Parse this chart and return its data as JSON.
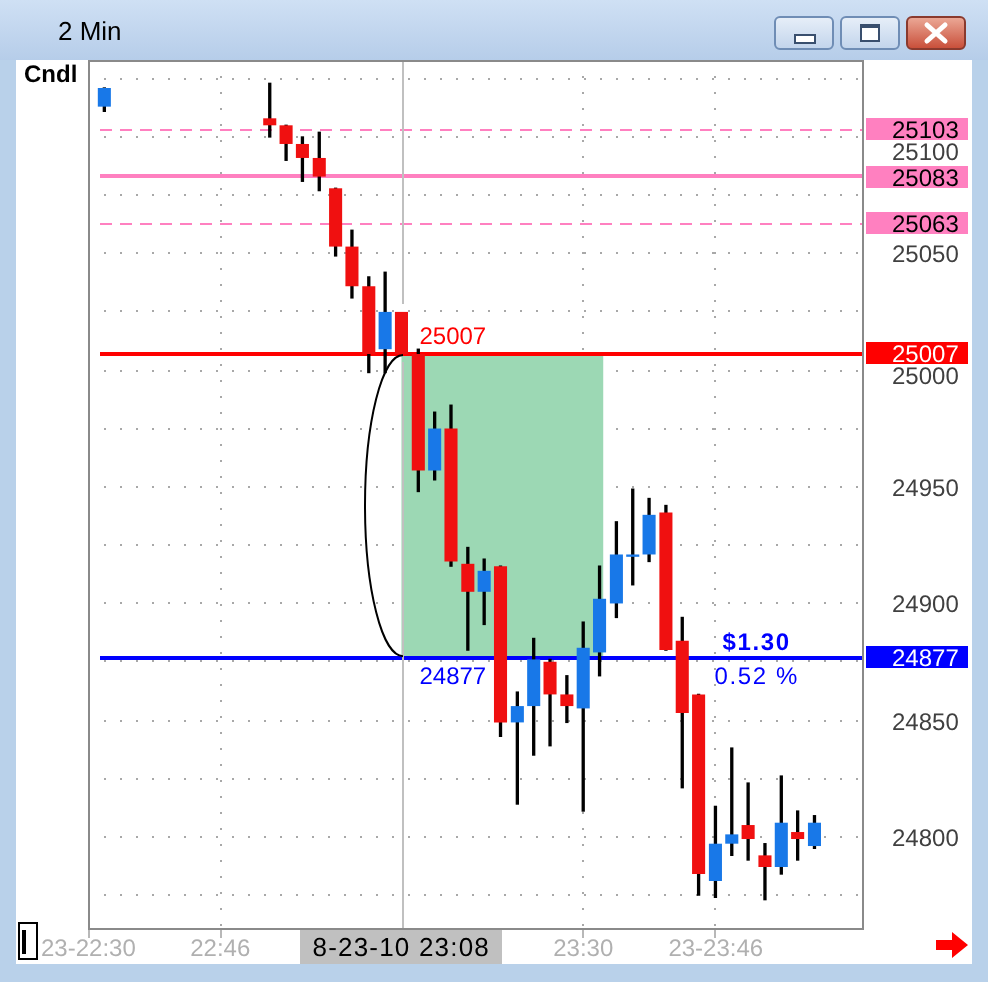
{
  "chart_data": {
    "type": "candlestick",
    "title": "2 Min",
    "x": [
      22.533,
      22.867,
      22.9,
      22.933,
      22.967,
      23,
      23.033,
      23.067,
      23.1,
      23.133,
      23.167,
      23.2,
      23.233,
      23.267,
      23.3,
      23.333,
      23.367,
      23.4,
      23.433,
      23.467,
      23.5,
      23.533,
      23.567,
      23.6,
      23.633,
      23.667,
      23.7,
      23.733,
      23.767,
      23.8,
      23.833,
      23.867,
      23.9,
      23.933,
      23.967
    ],
    "ohlc": [
      [
        25113,
        25121,
        25111,
        25121
      ],
      [
        25108,
        25123,
        25100,
        25105
      ],
      [
        25105,
        25105,
        25090,
        25097
      ],
      [
        25097,
        25100,
        25081,
        25091
      ],
      [
        25091,
        25102,
        25077,
        25083
      ],
      [
        25078,
        25078,
        25049,
        25053
      ],
      [
        25053,
        25060,
        25031,
        25036
      ],
      [
        25036,
        25040,
        24999,
        25007
      ],
      [
        25009,
        25042,
        24999,
        25025
      ],
      [
        25025,
        25025,
        25007,
        25007
      ],
      [
        25007,
        25009,
        24948,
        24957
      ],
      [
        24957,
        24982,
        24953,
        24975
      ],
      [
        24975,
        24985,
        24916,
        24918
      ],
      [
        24917,
        24924,
        24880,
        24905
      ],
      [
        24905,
        24919,
        24891,
        24914
      ],
      [
        24916,
        24916,
        24843,
        24849
      ],
      [
        24849,
        24862,
        24814,
        24856
      ],
      [
        24856,
        24885,
        24835,
        24876
      ],
      [
        24875,
        24876,
        24839,
        24861
      ],
      [
        24861,
        24869,
        24849,
        24856
      ],
      [
        24855,
        24892,
        24811,
        24881
      ],
      [
        24879,
        24916,
        24869,
        24902
      ],
      [
        24900,
        24935,
        24894,
        24921
      ],
      [
        24920,
        24949,
        24908,
        24921
      ],
      [
        24921,
        24945,
        24918,
        24938
      ],
      [
        24939,
        24942,
        24880,
        24880
      ],
      [
        24884,
        24894,
        24821,
        24853
      ],
      [
        24861,
        24861,
        24775,
        24784
      ],
      [
        24781,
        24813,
        24774,
        24797
      ],
      [
        24797,
        24838,
        24792,
        24801
      ],
      [
        24805,
        24823,
        24790,
        24799
      ],
      [
        24792,
        24797,
        24773,
        24787
      ],
      [
        24787,
        24826,
        24784,
        24806
      ],
      [
        24802,
        24811,
        24790,
        24799
      ],
      [
        24796,
        24809,
        24795,
        24806
      ]
    ],
    "colors": [
      "#1878e8",
      "#f01010",
      "#f01010",
      "#f01010",
      "#f01010",
      "#f01010",
      "#f01010",
      "#f01010",
      "#1878e8",
      "#f01010",
      "#f01010",
      "#1878e8",
      "#f01010",
      "#f01010",
      "#1878e8",
      "#f01010",
      "#1878e8",
      "#1878e8",
      "#f01010",
      "#f01010",
      "#1878e8",
      "#1878e8",
      "#1878e8",
      "#1878e8",
      "#1878e8",
      "#f01010",
      "#f01010",
      "#f01010",
      "#1878e8",
      "#1878e8",
      "#f01010",
      "#f01010",
      "#1878e8",
      "#f01010",
      "#1878e8"
    ],
    "xlim": [
      22.5,
      24.067
    ],
    "xticks": [
      {
        "value": 22.5,
        "label": "23-22:30"
      },
      {
        "value": 22.767,
        "label": "22:46"
      },
      {
        "value": 23.5,
        "label": "23:30"
      },
      {
        "value": 23.767,
        "label": "23-23:46"
      }
    ],
    "ylim": [
      24760,
      25133
    ],
    "yticks": [
      {
        "value": 24775,
        "label": null
      },
      24800,
      {
        "value": 24825,
        "label": null
      },
      24850,
      {
        "value": 24875,
        "label": null
      },
      24900,
      {
        "value": 24925,
        "label": null
      },
      24950,
      {
        "value": 24975,
        "label": null
      },
      25000,
      {
        "value": 25025,
        "label": null
      },
      25050,
      {
        "value": 25075,
        "label": null
      },
      25100,
      {
        "value": 25125,
        "label": null
      }
    ],
    "grid": true,
    "ref_lines": [
      {
        "axis": "y",
        "value": 25103,
        "label": "25103",
        "color": "#ff80c0",
        "line_style": "dashed"
      },
      {
        "axis": "y",
        "value": 25083,
        "label": "25083",
        "color": "#ff80c0",
        "line_style": "solid"
      },
      {
        "axis": "y",
        "value": 25063,
        "label": "25063",
        "color": "#ff80c0",
        "line_style": "dashed"
      },
      {
        "axis": "y",
        "value": 25007,
        "label": "25007",
        "color": "#ff0000",
        "line_style": "solid"
      },
      {
        "axis": "y",
        "value": 24877,
        "label": "24877",
        "color": "#0000ff",
        "line_style": "solid"
      },
      {
        "axis": "x",
        "value": 23.133,
        "label": "8-23-10 23:08",
        "color": "#c0c0c0",
        "line_style": "solid"
      }
    ],
    "bands": [
      {
        "axis": "y",
        "from": 24877,
        "to": 25007,
        "color": "#9cd8b4"
      }
    ],
    "annotations": [
      "Cndl",
      {
        "text": "$1.30",
        "x": 23.85,
        "y": 24877
      },
      {
        "text": "0.52 %",
        "x": 23.85,
        "y": 24877
      }
    ]
  }
}
